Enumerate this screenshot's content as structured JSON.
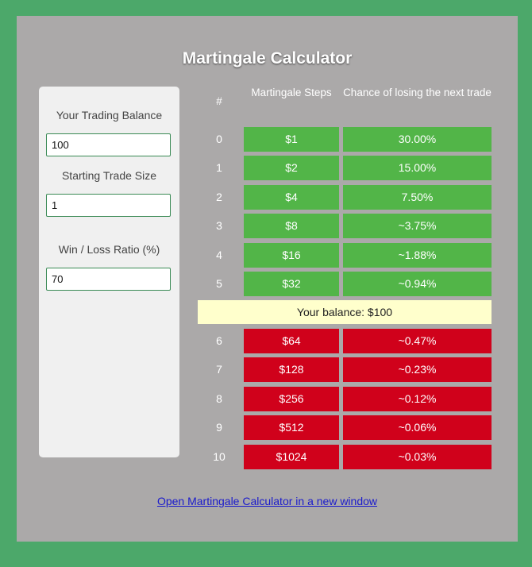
{
  "title": "Martingale Calculator",
  "form": {
    "balance_label": "Your Trading Balance",
    "balance_value": "100",
    "trade_size_label": "Starting Trade Size",
    "trade_size_value": "1",
    "ratio_label": "Win / Loss Ratio (%)",
    "ratio_value": "70"
  },
  "table": {
    "headers": [
      "#",
      "Martingale Steps",
      "Chance of losing the next trade"
    ],
    "rows_above": [
      {
        "n": "0",
        "step": "$1",
        "chance": "30.00%"
      },
      {
        "n": "1",
        "step": "$2",
        "chance": "15.00%"
      },
      {
        "n": "2",
        "step": "$4",
        "chance": "7.50%"
      },
      {
        "n": "3",
        "step": "$8",
        "chance": "~3.75%"
      },
      {
        "n": "4",
        "step": "$16",
        "chance": "~1.88%"
      },
      {
        "n": "5",
        "step": "$32",
        "chance": "~0.94%"
      }
    ],
    "balance_text": "Your balance: $100",
    "rows_below": [
      {
        "n": "6",
        "step": "$64",
        "chance": "~0.47%"
      },
      {
        "n": "7",
        "step": "$128",
        "chance": "~0.23%"
      },
      {
        "n": "8",
        "step": "$256",
        "chance": "~0.12%"
      },
      {
        "n": "9",
        "step": "$512",
        "chance": "~0.06%"
      },
      {
        "n": "10",
        "step": "$1024",
        "chance": "~0.03%"
      }
    ]
  },
  "link_text": "Open Martingale Calculator in a new window",
  "colors": {
    "background": "#4ca86a",
    "frame": "#aba9a9",
    "affordable": "#52b548",
    "unaffordable": "#d0011b",
    "balance_bar": "#ffffcc"
  }
}
